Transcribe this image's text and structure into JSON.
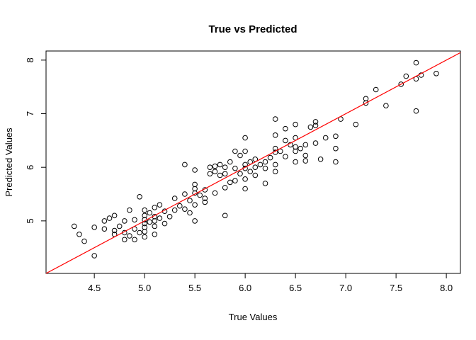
{
  "chart_data": {
    "type": "scatter",
    "title": "True vs Predicted",
    "xlabel": "True Values",
    "ylabel": "Predicted Values",
    "xlim": [
      4.02,
      8.14
    ],
    "ylim": [
      4.02,
      8.17
    ],
    "x_ticks": [
      4.5,
      5.0,
      5.5,
      6.0,
      6.5,
      7.0,
      7.5,
      8.0
    ],
    "x_tick_labels": [
      "4.5",
      "5.0",
      "5.5",
      "6.0",
      "6.5",
      "7.0",
      "7.5",
      "8.0"
    ],
    "y_ticks": [
      5,
      6,
      7,
      8
    ],
    "y_tick_labels": [
      "5",
      "6",
      "7",
      "8"
    ],
    "grid": false,
    "legend": "none",
    "point_style": {
      "shape": "open-circle",
      "stroke_color": "#000000",
      "fill": "none"
    },
    "reference_line": {
      "type": "identity",
      "color": "#ff0000"
    },
    "points": [
      [
        4.3,
        4.9
      ],
      [
        4.35,
        4.75
      ],
      [
        4.4,
        4.62
      ],
      [
        4.5,
        4.35
      ],
      [
        4.5,
        4.88
      ],
      [
        4.6,
        4.85
      ],
      [
        4.6,
        5.0
      ],
      [
        4.65,
        5.05
      ],
      [
        4.7,
        4.75
      ],
      [
        4.7,
        4.82
      ],
      [
        4.7,
        5.1
      ],
      [
        4.75,
        4.9
      ],
      [
        4.8,
        4.65
      ],
      [
        4.8,
        4.78
      ],
      [
        4.8,
        5.0
      ],
      [
        4.85,
        4.72
      ],
      [
        4.85,
        5.2
      ],
      [
        4.9,
        4.65
      ],
      [
        4.9,
        4.85
      ],
      [
        4.9,
        5.02
      ],
      [
        4.95,
        4.78
      ],
      [
        4.95,
        5.45
      ],
      [
        5.0,
        4.7
      ],
      [
        5.0,
        4.8
      ],
      [
        5.0,
        4.88
      ],
      [
        5.0,
        4.95
      ],
      [
        5.0,
        5.02
      ],
      [
        5.0,
        5.1
      ],
      [
        5.0,
        5.2
      ],
      [
        5.05,
        4.98
      ],
      [
        5.05,
        5.15
      ],
      [
        5.1,
        4.75
      ],
      [
        5.1,
        4.9
      ],
      [
        5.1,
        5.0
      ],
      [
        5.1,
        5.08
      ],
      [
        5.1,
        5.25
      ],
      [
        5.15,
        5.05
      ],
      [
        5.15,
        5.3
      ],
      [
        5.2,
        4.95
      ],
      [
        5.2,
        5.18
      ],
      [
        5.25,
        5.08
      ],
      [
        5.3,
        5.2
      ],
      [
        5.3,
        5.42
      ],
      [
        5.35,
        5.28
      ],
      [
        5.4,
        5.22
      ],
      [
        5.4,
        5.5
      ],
      [
        5.4,
        6.05
      ],
      [
        5.45,
        5.15
      ],
      [
        5.45,
        5.38
      ],
      [
        5.5,
        5.0
      ],
      [
        5.5,
        5.3
      ],
      [
        5.5,
        5.52
      ],
      [
        5.5,
        5.6
      ],
      [
        5.5,
        5.68
      ],
      [
        5.5,
        5.95
      ],
      [
        5.55,
        5.48
      ],
      [
        5.6,
        5.35
      ],
      [
        5.6,
        5.42
      ],
      [
        5.6,
        5.58
      ],
      [
        5.65,
        5.88
      ],
      [
        5.65,
        6.0
      ],
      [
        5.7,
        5.52
      ],
      [
        5.7,
        5.92
      ],
      [
        5.7,
        6.02
      ],
      [
        5.75,
        5.85
      ],
      [
        5.75,
        6.05
      ],
      [
        5.8,
        5.1
      ],
      [
        5.8,
        5.62
      ],
      [
        5.8,
        5.88
      ],
      [
        5.8,
        6.0
      ],
      [
        5.85,
        5.72
      ],
      [
        5.85,
        6.1
      ],
      [
        5.9,
        5.75
      ],
      [
        5.9,
        5.98
      ],
      [
        5.9,
        6.3
      ],
      [
        5.95,
        5.88
      ],
      [
        5.95,
        6.22
      ],
      [
        6.0,
        5.6
      ],
      [
        6.0,
        5.78
      ],
      [
        6.0,
        5.98
      ],
      [
        6.0,
        6.05
      ],
      [
        6.0,
        6.3
      ],
      [
        6.0,
        6.55
      ],
      [
        6.05,
        5.92
      ],
      [
        6.05,
        6.1
      ],
      [
        6.1,
        5.85
      ],
      [
        6.1,
        6.0
      ],
      [
        6.1,
        6.15
      ],
      [
        6.15,
        6.05
      ],
      [
        6.2,
        5.7
      ],
      [
        6.2,
        5.98
      ],
      [
        6.2,
        6.1
      ],
      [
        6.25,
        6.18
      ],
      [
        6.3,
        5.92
      ],
      [
        6.3,
        6.05
      ],
      [
        6.3,
        6.28
      ],
      [
        6.3,
        6.35
      ],
      [
        6.3,
        6.6
      ],
      [
        6.3,
        6.9
      ],
      [
        6.35,
        6.3
      ],
      [
        6.4,
        6.2
      ],
      [
        6.4,
        6.5
      ],
      [
        6.4,
        6.72
      ],
      [
        6.45,
        6.42
      ],
      [
        6.5,
        6.1
      ],
      [
        6.5,
        6.3
      ],
      [
        6.5,
        6.38
      ],
      [
        6.5,
        6.55
      ],
      [
        6.5,
        6.8
      ],
      [
        6.55,
        6.35
      ],
      [
        6.6,
        6.12
      ],
      [
        6.6,
        6.22
      ],
      [
        6.6,
        6.42
      ],
      [
        6.65,
        6.75
      ],
      [
        6.7,
        6.45
      ],
      [
        6.7,
        6.78
      ],
      [
        6.7,
        6.85
      ],
      [
        6.75,
        6.15
      ],
      [
        6.8,
        6.55
      ],
      [
        6.9,
        6.1
      ],
      [
        6.9,
        6.35
      ],
      [
        6.9,
        6.58
      ],
      [
        6.95,
        6.9
      ],
      [
        7.1,
        6.8
      ],
      [
        7.2,
        7.2
      ],
      [
        7.2,
        7.28
      ],
      [
        7.3,
        7.45
      ],
      [
        7.4,
        7.15
      ],
      [
        7.55,
        7.55
      ],
      [
        7.6,
        7.7
      ],
      [
        7.7,
        7.05
      ],
      [
        7.7,
        7.65
      ],
      [
        7.7,
        7.95
      ],
      [
        7.75,
        7.72
      ],
      [
        7.9,
        7.75
      ]
    ]
  }
}
